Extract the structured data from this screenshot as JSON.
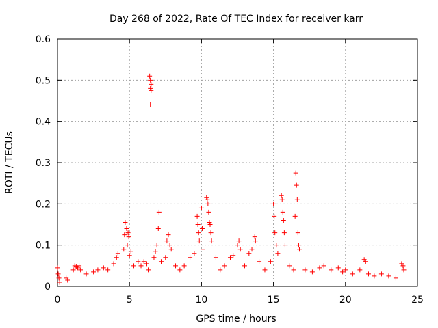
{
  "chart_data": {
    "type": "scatter",
    "title": "Day 268 of 2022, Rate Of TEC Index for receiver karr",
    "xlabel": "GPS time / hours",
    "ylabel": "ROTI / TECUs",
    "xlim": [
      0,
      25
    ],
    "ylim": [
      0,
      0.6
    ],
    "xticks": [
      0,
      5,
      10,
      15,
      20,
      25
    ],
    "xtick_labels": [
      "0",
      "5",
      "10",
      "15",
      "20",
      "25"
    ],
    "yticks": [
      0,
      0.1,
      0.2,
      0.3,
      0.4,
      0.5,
      0.6
    ],
    "ytick_labels": [
      "0",
      "0.1",
      "0.2",
      "0.3",
      "0.4",
      "0.5",
      "0.6"
    ],
    "grid": true,
    "marker": "+",
    "color": "#ff0000",
    "series": [
      {
        "name": "ROTI",
        "points": [
          [
            0.0,
            0.045
          ],
          [
            0.05,
            0.03
          ],
          [
            0.1,
            0.02
          ],
          [
            0.15,
            0.01
          ],
          [
            0.6,
            0.02
          ],
          [
            0.7,
            0.015
          ],
          [
            1.1,
            0.04
          ],
          [
            1.2,
            0.05
          ],
          [
            1.3,
            0.048
          ],
          [
            1.4,
            0.045
          ],
          [
            1.5,
            0.05
          ],
          [
            1.6,
            0.04
          ],
          [
            2.0,
            0.03
          ],
          [
            2.5,
            0.035
          ],
          [
            2.8,
            0.04
          ],
          [
            3.2,
            0.045
          ],
          [
            3.5,
            0.04
          ],
          [
            3.9,
            0.055
          ],
          [
            4.1,
            0.07
          ],
          [
            4.2,
            0.08
          ],
          [
            4.6,
            0.09
          ],
          [
            4.65,
            0.125
          ],
          [
            4.7,
            0.155
          ],
          [
            4.8,
            0.14
          ],
          [
            4.85,
            0.1
          ],
          [
            4.9,
            0.13
          ],
          [
            4.95,
            0.12
          ],
          [
            5.0,
            0.075
          ],
          [
            5.1,
            0.085
          ],
          [
            5.3,
            0.05
          ],
          [
            5.6,
            0.06
          ],
          [
            5.8,
            0.05
          ],
          [
            6.0,
            0.06
          ],
          [
            6.2,
            0.055
          ],
          [
            6.3,
            0.04
          ],
          [
            6.4,
            0.51
          ],
          [
            6.45,
            0.5
          ],
          [
            6.5,
            0.49
          ],
          [
            6.45,
            0.48
          ],
          [
            6.5,
            0.475
          ],
          [
            6.45,
            0.44
          ],
          [
            6.7,
            0.07
          ],
          [
            6.8,
            0.085
          ],
          [
            6.9,
            0.1
          ],
          [
            7.0,
            0.14
          ],
          [
            7.05,
            0.18
          ],
          [
            7.2,
            0.06
          ],
          [
            7.5,
            0.07
          ],
          [
            7.6,
            0.11
          ],
          [
            7.7,
            0.125
          ],
          [
            7.8,
            0.1
          ],
          [
            7.9,
            0.09
          ],
          [
            8.2,
            0.05
          ],
          [
            8.5,
            0.04
          ],
          [
            8.8,
            0.05
          ],
          [
            9.2,
            0.07
          ],
          [
            9.5,
            0.08
          ],
          [
            9.7,
            0.17
          ],
          [
            9.75,
            0.15
          ],
          [
            9.8,
            0.13
          ],
          [
            9.85,
            0.11
          ],
          [
            10.0,
            0.19
          ],
          [
            10.05,
            0.14
          ],
          [
            10.1,
            0.09
          ],
          [
            10.35,
            0.215
          ],
          [
            10.4,
            0.21
          ],
          [
            10.45,
            0.2
          ],
          [
            10.5,
            0.18
          ],
          [
            10.55,
            0.155
          ],
          [
            10.6,
            0.15
          ],
          [
            10.65,
            0.13
          ],
          [
            10.7,
            0.11
          ],
          [
            11.0,
            0.07
          ],
          [
            11.3,
            0.04
          ],
          [
            11.6,
            0.05
          ],
          [
            12.0,
            0.07
          ],
          [
            12.2,
            0.075
          ],
          [
            12.5,
            0.1
          ],
          [
            12.6,
            0.11
          ],
          [
            12.7,
            0.09
          ],
          [
            13.0,
            0.05
          ],
          [
            13.3,
            0.08
          ],
          [
            13.5,
            0.09
          ],
          [
            13.7,
            0.12
          ],
          [
            13.75,
            0.11
          ],
          [
            14.0,
            0.06
          ],
          [
            14.4,
            0.04
          ],
          [
            14.8,
            0.06
          ],
          [
            15.0,
            0.2
          ],
          [
            15.05,
            0.17
          ],
          [
            15.1,
            0.13
          ],
          [
            15.2,
            0.1
          ],
          [
            15.3,
            0.08
          ],
          [
            15.55,
            0.22
          ],
          [
            15.6,
            0.21
          ],
          [
            15.65,
            0.18
          ],
          [
            15.7,
            0.16
          ],
          [
            15.75,
            0.13
          ],
          [
            15.8,
            0.1
          ],
          [
            16.1,
            0.05
          ],
          [
            16.4,
            0.04
          ],
          [
            16.5,
            0.17
          ],
          [
            16.55,
            0.275
          ],
          [
            16.6,
            0.245
          ],
          [
            16.65,
            0.21
          ],
          [
            16.7,
            0.13
          ],
          [
            16.75,
            0.1
          ],
          [
            16.8,
            0.09
          ],
          [
            17.2,
            0.04
          ],
          [
            17.7,
            0.035
          ],
          [
            18.2,
            0.045
          ],
          [
            18.5,
            0.05
          ],
          [
            19.0,
            0.04
          ],
          [
            19.5,
            0.045
          ],
          [
            19.8,
            0.035
          ],
          [
            20.0,
            0.04
          ],
          [
            20.5,
            0.03
          ],
          [
            21.0,
            0.04
          ],
          [
            21.3,
            0.065
          ],
          [
            21.4,
            0.06
          ],
          [
            21.6,
            0.03
          ],
          [
            22.0,
            0.025
          ],
          [
            22.5,
            0.03
          ],
          [
            23.0,
            0.025
          ],
          [
            23.5,
            0.02
          ],
          [
            23.9,
            0.055
          ],
          [
            24.0,
            0.05
          ],
          [
            24.05,
            0.04
          ]
        ]
      }
    ]
  }
}
